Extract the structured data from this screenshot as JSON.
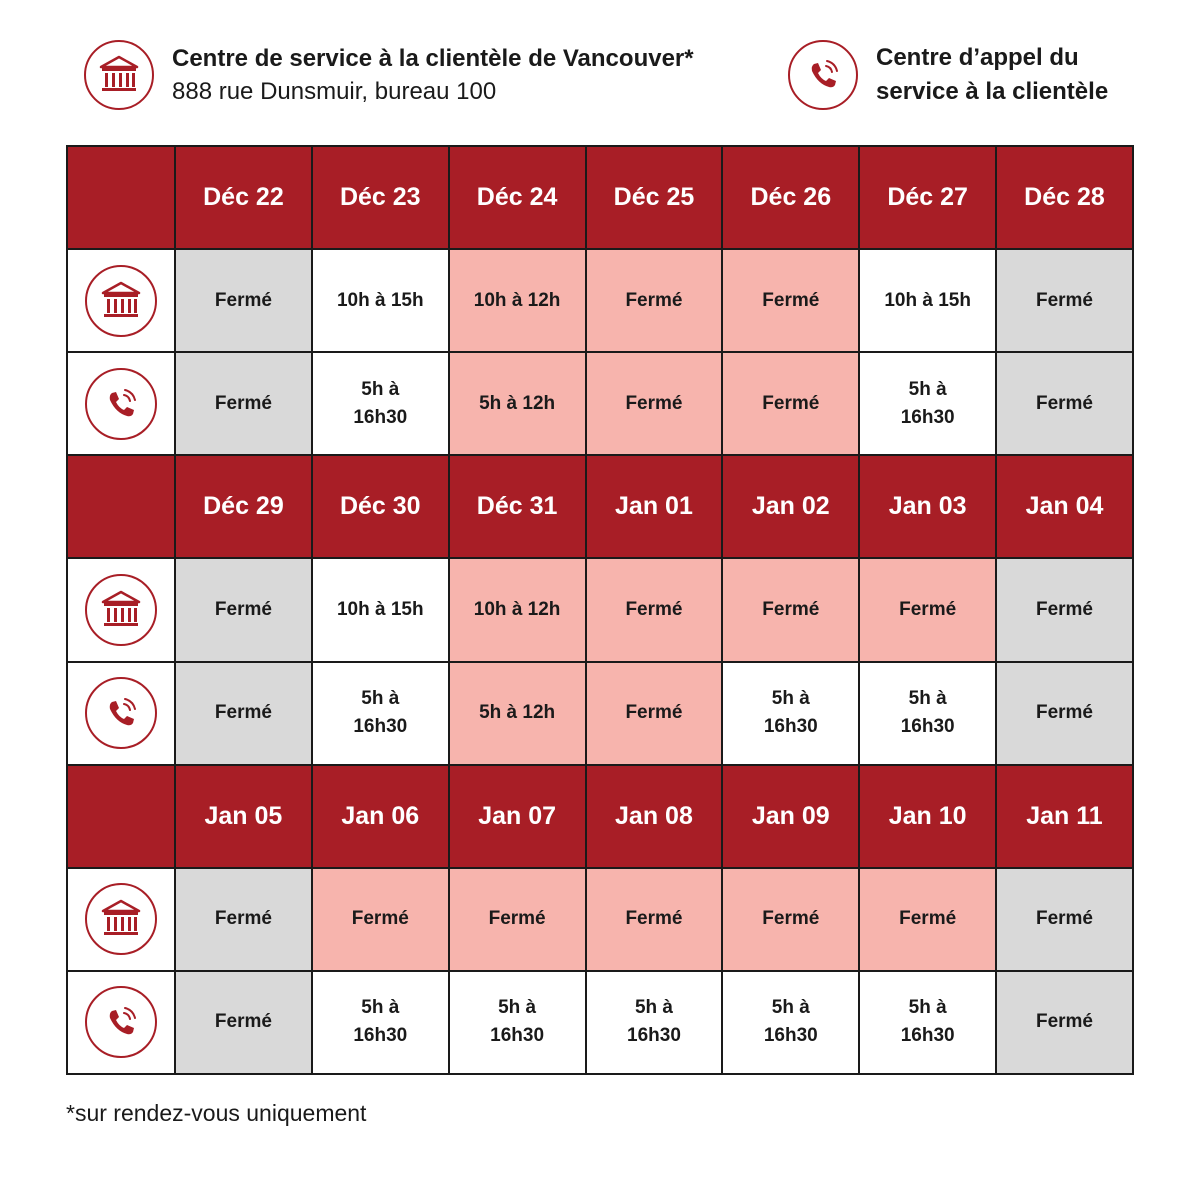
{
  "legend": {
    "branch_icon": "bank-building-icon",
    "branch_title": "Centre de service à la clientèle de Vancouver*",
    "branch_address": "888 rue Dunsmuir, bureau 100",
    "call_icon": "phone-icon",
    "call_title": "Centre d’appel du service à la clientèle"
  },
  "colors": {
    "header": "#a81e26",
    "closed_weekend": "#d9d9d9",
    "reduced_or_holiday": "#f7b4ad",
    "open": "#ffffff"
  },
  "weeks": [
    {
      "days": [
        "Déc 22",
        "Déc 23",
        "Déc 24",
        "Déc 25",
        "Déc 26",
        "Déc 27",
        "Déc 28"
      ],
      "branch": [
        {
          "text": "Fermé",
          "style": "gray"
        },
        {
          "text": "10h à 15h",
          "style": "white"
        },
        {
          "text": "10h à 12h",
          "style": "pink"
        },
        {
          "text": "Fermé",
          "style": "pink"
        },
        {
          "text": "Fermé",
          "style": "pink"
        },
        {
          "text": "10h à 15h",
          "style": "white"
        },
        {
          "text": "Fermé",
          "style": "gray"
        }
      ],
      "call": [
        {
          "text": "Fermé",
          "style": "gray"
        },
        {
          "text": "5h à\n16h30",
          "style": "white"
        },
        {
          "text": "5h à 12h",
          "style": "pink"
        },
        {
          "text": "Fermé",
          "style": "pink"
        },
        {
          "text": "Fermé",
          "style": "pink"
        },
        {
          "text": "5h à\n16h30",
          "style": "white"
        },
        {
          "text": "Fermé",
          "style": "gray"
        }
      ]
    },
    {
      "days": [
        "Déc 29",
        "Déc 30",
        "Déc 31",
        "Jan 01",
        "Jan 02",
        "Jan 03",
        "Jan 04"
      ],
      "branch": [
        {
          "text": "Fermé",
          "style": "gray"
        },
        {
          "text": "10h à 15h",
          "style": "white"
        },
        {
          "text": "10h à 12h",
          "style": "pink"
        },
        {
          "text": "Fermé",
          "style": "pink"
        },
        {
          "text": "Fermé",
          "style": "pink"
        },
        {
          "text": "Fermé",
          "style": "pink"
        },
        {
          "text": "Fermé",
          "style": "gray"
        }
      ],
      "call": [
        {
          "text": "Fermé",
          "style": "gray"
        },
        {
          "text": "5h à\n16h30",
          "style": "white"
        },
        {
          "text": "5h à 12h",
          "style": "pink"
        },
        {
          "text": "Fermé",
          "style": "pink"
        },
        {
          "text": "5h à\n16h30",
          "style": "white"
        },
        {
          "text": "5h à\n16h30",
          "style": "white"
        },
        {
          "text": "Fermé",
          "style": "gray"
        }
      ]
    },
    {
      "days": [
        "Jan 05",
        "Jan 06",
        "Jan 07",
        "Jan 08",
        "Jan 09",
        "Jan 10",
        "Jan 11"
      ],
      "branch": [
        {
          "text": "Fermé",
          "style": "gray"
        },
        {
          "text": "Fermé",
          "style": "pink"
        },
        {
          "text": "Fermé",
          "style": "pink"
        },
        {
          "text": "Fermé",
          "style": "pink"
        },
        {
          "text": "Fermé",
          "style": "pink"
        },
        {
          "text": "Fermé",
          "style": "pink"
        },
        {
          "text": "Fermé",
          "style": "gray"
        }
      ],
      "call": [
        {
          "text": "Fermé",
          "style": "gray"
        },
        {
          "text": "5h à\n16h30",
          "style": "white"
        },
        {
          "text": "5h à\n16h30",
          "style": "white"
        },
        {
          "text": "5h à\n16h30",
          "style": "white"
        },
        {
          "text": "5h à\n16h30",
          "style": "white"
        },
        {
          "text": "5h à\n16h30",
          "style": "white"
        },
        {
          "text": "Fermé",
          "style": "gray"
        }
      ]
    }
  ],
  "footnote": "*sur rendez-vous uniquement"
}
